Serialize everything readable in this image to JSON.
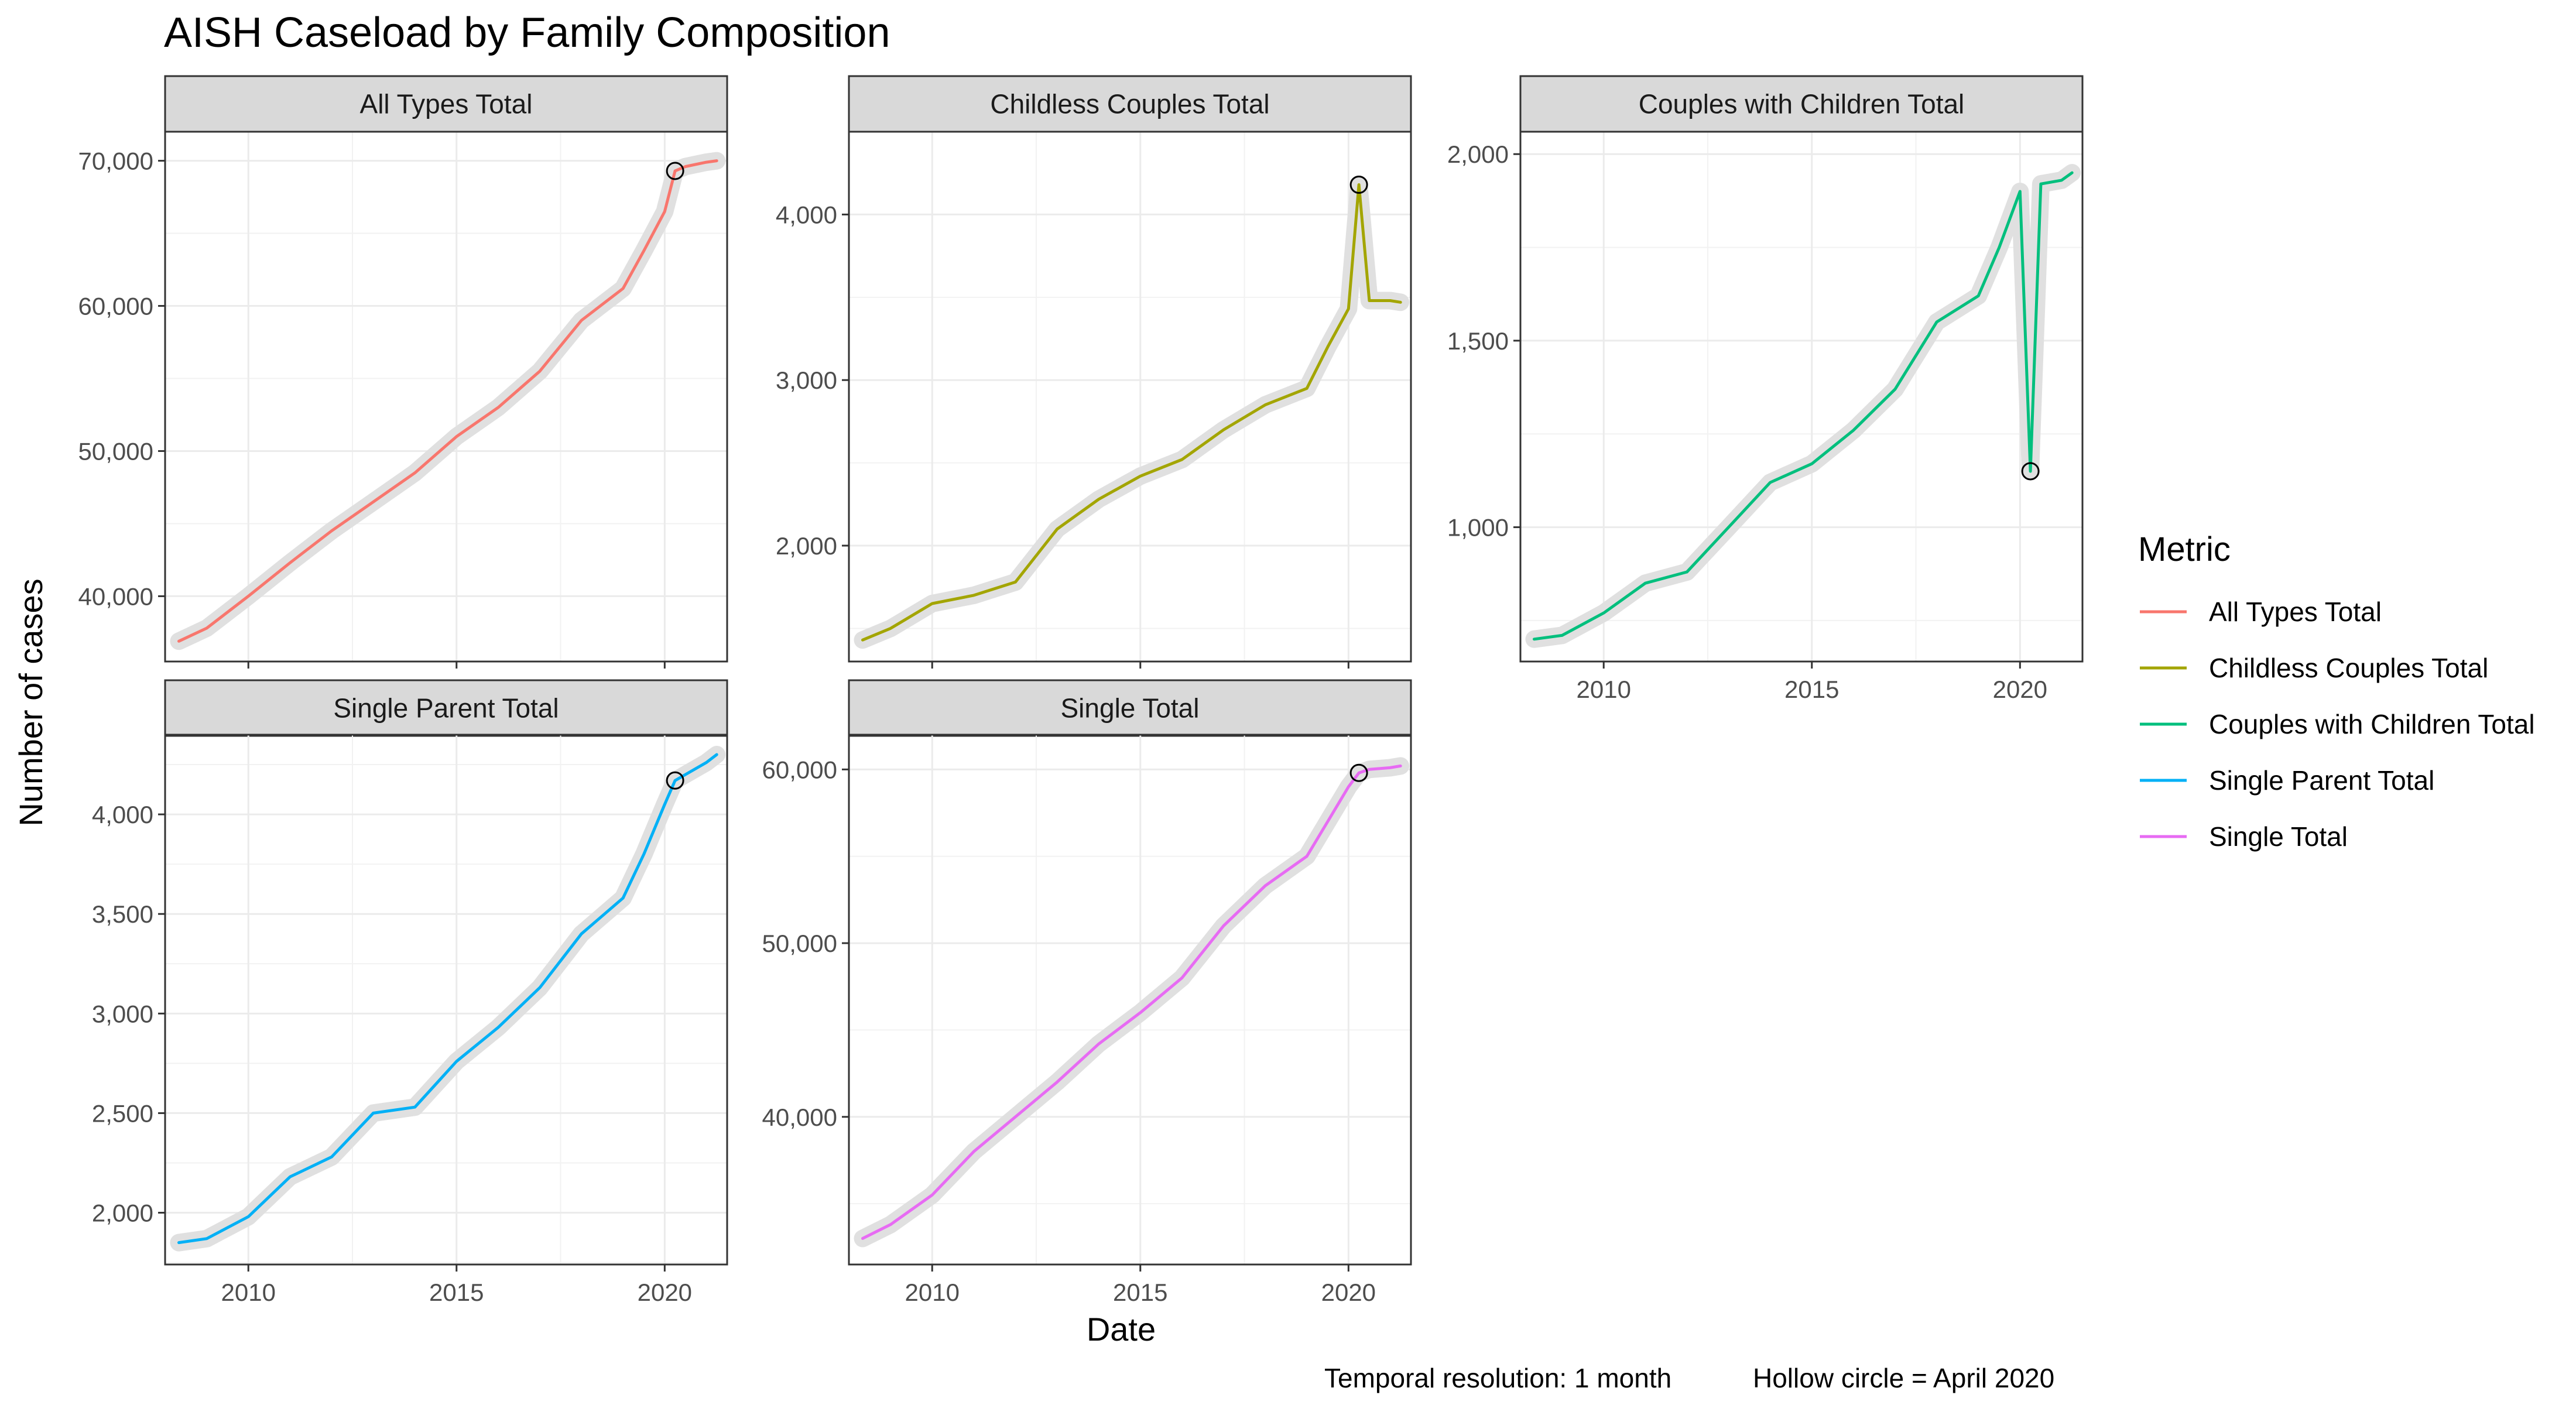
{
  "chart_data": {
    "type": "line",
    "title": "AISH Caseload by Family Composition",
    "xlabel": "Date",
    "ylabel": "Number of cases",
    "x_range": [
      2008.0,
      2021.5
    ],
    "x_ticks": [
      2010,
      2015,
      2020
    ],
    "x_tick_labels": [
      "2010",
      "2015",
      "2020"
    ],
    "legend": {
      "title": "Metric",
      "position": "right"
    },
    "grid": true,
    "annotation_marker": "hollow circle at April 2020",
    "captions": [
      "Temporal resolution: 1 month",
      "Hollow circle = April 2020"
    ],
    "highlight_x": 2020.25,
    "x": [
      2008.33,
      2009.0,
      2010.0,
      2011.0,
      2012.0,
      2013.0,
      2014.0,
      2015.0,
      2016.0,
      2017.0,
      2018.0,
      2019.0,
      2019.5,
      2020.0,
      2020.25,
      2020.5,
      2021.0,
      2021.25
    ],
    "panels": [
      {
        "strip": "All Types Total",
        "color": "#F8766D",
        "ylim": [
          35500,
          72000
        ],
        "y_ticks": [
          40000,
          50000,
          60000,
          70000
        ],
        "y_tick_labels": [
          "40,000",
          "50,000",
          "60,000",
          "70,000"
        ],
        "values": [
          36900,
          37800,
          40000,
          42300,
          44500,
          46500,
          48500,
          51000,
          53000,
          55500,
          59000,
          61200,
          63800,
          66500,
          69300,
          69600,
          69900,
          70000
        ]
      },
      {
        "strip": "Childless Couples Total",
        "color": "#A3A500",
        "ylim": [
          1300,
          4500
        ],
        "y_ticks": [
          2000,
          3000,
          4000
        ],
        "y_tick_labels": [
          "2,000",
          "3,000",
          "4,000"
        ],
        "values": [
          1430,
          1500,
          1650,
          1700,
          1780,
          2100,
          2280,
          2420,
          2520,
          2700,
          2850,
          2950,
          3200,
          3430,
          4180,
          3480,
          3480,
          3470
        ]
      },
      {
        "strip": "Couples with Children Total",
        "color": "#00BF7D",
        "ylim": [
          640,
          2060
        ],
        "y_ticks": [
          1000,
          1500,
          2000
        ],
        "y_tick_labels": [
          "1,000",
          "1,500",
          "2,000"
        ],
        "values": [
          700,
          710,
          770,
          850,
          880,
          1000,
          1120,
          1170,
          1260,
          1370,
          1550,
          1620,
          1750,
          1900,
          1150,
          1920,
          1930,
          1950
        ]
      },
      {
        "strip": "Single Parent Total",
        "color": "#00B0F6",
        "ylim": [
          1740,
          4400
        ],
        "y_ticks": [
          2000,
          2500,
          3000,
          3500,
          4000
        ],
        "y_tick_labels": [
          "2,000",
          "2,500",
          "3,000",
          "3,500",
          "4,000"
        ],
        "values": [
          1850,
          1870,
          1980,
          2180,
          2280,
          2500,
          2530,
          2760,
          2930,
          3130,
          3400,
          3580,
          3800,
          4050,
          4170,
          4200,
          4260,
          4300
        ]
      },
      {
        "strip": "Single Total",
        "color": "#E76BF3",
        "ylim": [
          31500,
          62000
        ],
        "y_ticks": [
          40000,
          50000,
          60000
        ],
        "y_tick_labels": [
          "40,000",
          "50,000",
          "60,000"
        ],
        "values": [
          33000,
          33800,
          35500,
          38000,
          40000,
          42000,
          44200,
          46000,
          48000,
          51000,
          53300,
          55000,
          57000,
          59000,
          59800,
          60000,
          60100,
          60200
        ]
      }
    ]
  }
}
